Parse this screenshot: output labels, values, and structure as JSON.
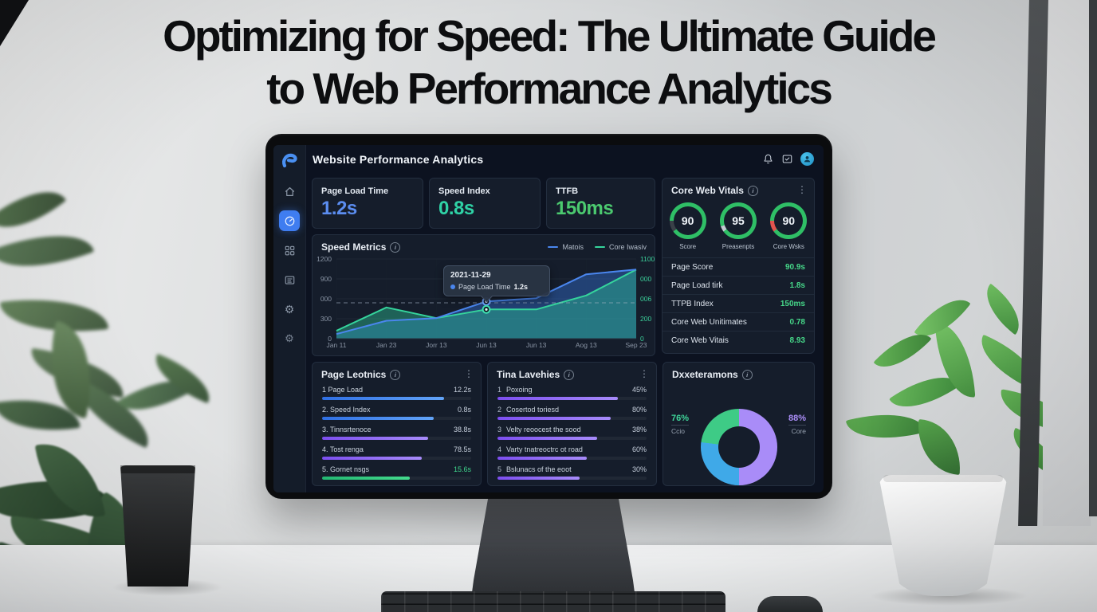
{
  "hero": {
    "title_line_1": "Optimizing for Speed: The Ultimate Guide",
    "title_line_2": "to Web Performance Analytics"
  },
  "dashboard": {
    "header": {
      "title": "Website Performance Analytics"
    },
    "sidebar_icons": [
      "home",
      "dashboard",
      "apps-grid",
      "reports",
      "settings",
      "preferences"
    ],
    "metric_cards": [
      {
        "label": "Page Load Time",
        "value": "1.2s",
        "color": "#5b8df0"
      },
      {
        "label": "Speed Index",
        "value": "0.8s",
        "color": "#2fd3a6"
      },
      {
        "label": "TTFB",
        "value": "150ms",
        "color": "#4bc96f"
      }
    ],
    "core_web_vitals": {
      "title": "Core Web Vitals",
      "ring_color": "#2fbf66",
      "gauges": [
        {
          "value": "90",
          "label": "Score",
          "gap_color": "#3a4148"
        },
        {
          "value": "95",
          "label": "Preasenpts",
          "gap_color": "#c2cad2"
        },
        {
          "value": "90",
          "label": "Core Wsks",
          "gap_color": "#e2544e"
        }
      ],
      "stats": [
        {
          "label": "Page Score",
          "value": "90.9s"
        },
        {
          "label": "Page Load tirk",
          "value": "1.8s"
        },
        {
          "label": "TTPB Index",
          "value": "150ms"
        },
        {
          "label": "Core Web Unitimates",
          "value": "0.78"
        },
        {
          "label": "Core Web Vitais",
          "value": "8.93"
        }
      ]
    },
    "speed_metrics": {
      "title": "Speed Metrics",
      "tooltip": {
        "date": "2021-11-29",
        "series": "Page Load Time",
        "value": "1.2s"
      }
    },
    "page_metrics": {
      "title": "Page Leotnics",
      "items": [
        {
          "label": "1 Page Load",
          "value": "12.2s",
          "pct": 82,
          "color": "blue"
        },
        {
          "label": "2. Speed Index",
          "value": "0.8s",
          "pct": 75,
          "color": "blue"
        },
        {
          "label": "3. Tinnsrtenoce",
          "value": "38.8s",
          "pct": 71,
          "color": "purple"
        },
        {
          "label": "4. Tost renga",
          "value": "78.5s",
          "pct": 67,
          "color": "purple"
        },
        {
          "label": "5. Gornet nsgs",
          "value": "15.6s",
          "pct": 59,
          "color": "green",
          "value_color": "#3fd68c"
        }
      ]
    },
    "tina_lavehies": {
      "title": "Tina Lavehies",
      "items": [
        {
          "rank": "1",
          "label": "Poxoing",
          "value": "45%",
          "pct": 81
        },
        {
          "rank": "2",
          "label": "Cosertod toriesd",
          "value": "80%",
          "pct": 76
        },
        {
          "rank": "3",
          "label": "Velty reoocest the sood",
          "value": "38%",
          "pct": 67
        },
        {
          "rank": "4",
          "label": "Varty tnatreoctrc ot road",
          "value": "60%",
          "pct": 60
        },
        {
          "rank": "5",
          "label": "Bslunacs of the eoot",
          "value": "30%",
          "pct": 55
        }
      ]
    },
    "donut_panel": {
      "title": "Dxxeteramons",
      "left_stat": {
        "value": "76%",
        "label": "Ccio"
      },
      "right_stat": {
        "value": "88%",
        "label": "Core"
      }
    }
  },
  "chart_data": [
    {
      "type": "line",
      "title": "Speed Metrics",
      "x": [
        "Jan 11",
        "Jan 23",
        "Jorr 13",
        "Jun 13",
        "Jun 13",
        "Aog 13",
        "Sep 23"
      ],
      "series": [
        {
          "name": "Matois",
          "color": "#4a86ee",
          "values": [
            70,
            270,
            310,
            560,
            610,
            970,
            1040
          ]
        },
        {
          "name": "Core Iwasiv",
          "color": "#35d49c",
          "values": [
            120,
            470,
            310,
            440,
            440,
            650,
            1040
          ]
        }
      ],
      "ylim": [
        0,
        1200
      ],
      "y_ticks_left": [
        "1200",
        "900",
        "000",
        "300",
        "0"
      ],
      "y_ticks_right": [
        "1100",
        "000",
        "006",
        "200",
        "0"
      ],
      "ref_line_value": 540,
      "grid": true,
      "legend_position": "top-right",
      "tooltip": {
        "x_index": 3,
        "date": "2021-11-29",
        "label": "Page Load Time",
        "value": "1.2s"
      }
    },
    {
      "type": "bar",
      "title": "Page Leotnics",
      "categories": [
        "1 Page Load",
        "2. Speed Index",
        "3. Tinnsrtenoce",
        "4. Tost renga",
        "5. Gornet nsgs"
      ],
      "values": [
        "12.2s",
        "0.8s",
        "38.8s",
        "78.5s",
        "15.6s"
      ]
    },
    {
      "type": "bar",
      "title": "Tina Lavehies",
      "categories": [
        "Poxoing",
        "Cosertod toriesd",
        "Velty reoocest the sood",
        "Varty tnatreoctrc ot road",
        "Bslunacs of the eoot"
      ],
      "values": [
        45,
        80,
        38,
        60,
        30
      ],
      "unit": "%"
    },
    {
      "type": "pie",
      "title": "Dxxeteramons",
      "slices": [
        {
          "label": "right-half",
          "value": 50,
          "color": "#a98cf8"
        },
        {
          "label": "bottom-left",
          "value": 27,
          "color": "#3fa9e8"
        },
        {
          "label": "top-left",
          "value": 23,
          "color": "#3ecb86"
        }
      ],
      "annotations": [
        {
          "text": "76%",
          "sub": "Ccio"
        },
        {
          "text": "88%",
          "sub": "Core"
        }
      ]
    },
    {
      "type": "gauge",
      "title": "Core Web Vitals",
      "values": [
        90,
        95,
        90
      ],
      "labels": [
        "Score",
        "Preasenpts",
        "Core Wsks"
      ]
    }
  ]
}
